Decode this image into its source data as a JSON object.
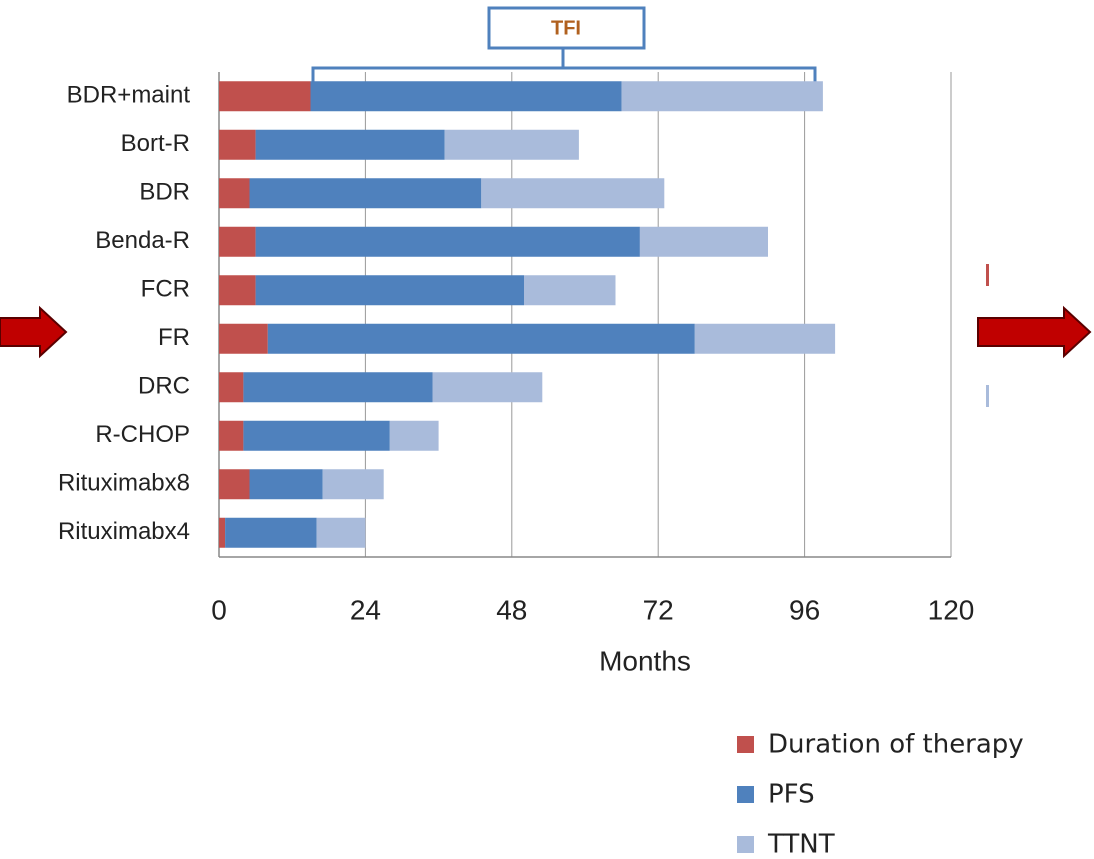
{
  "chart_data": {
    "type": "bar",
    "horizontal": true,
    "stacked": true,
    "annotation": "TFI",
    "x_label": "Months",
    "categories": [
      "BDR+maint",
      "Bort-R",
      "BDR",
      "Benda-R",
      "FCR",
      "FR",
      "DRC",
      "R-CHOP",
      "Rituximabx8",
      "Rituximabx4"
    ],
    "series": [
      {
        "name": "Duration of therapy",
        "color": "#c0504d",
        "values": [
          15,
          6,
          5,
          6,
          6,
          8,
          4,
          4,
          5,
          1
        ]
      },
      {
        "name": "PFS",
        "color": "#4f81bd",
        "values": [
          51,
          31,
          38,
          63,
          44,
          70,
          31,
          24,
          12,
          15
        ]
      },
      {
        "name": "TTNT",
        "color": "#a9bbdb",
        "values": [
          33,
          22,
          30,
          21,
          15,
          23,
          18,
          8,
          10,
          8
        ]
      }
    ],
    "xlim": [
      0,
      120
    ],
    "xticks": [
      0,
      24,
      48,
      72,
      96,
      120
    ],
    "grid": true
  }
}
